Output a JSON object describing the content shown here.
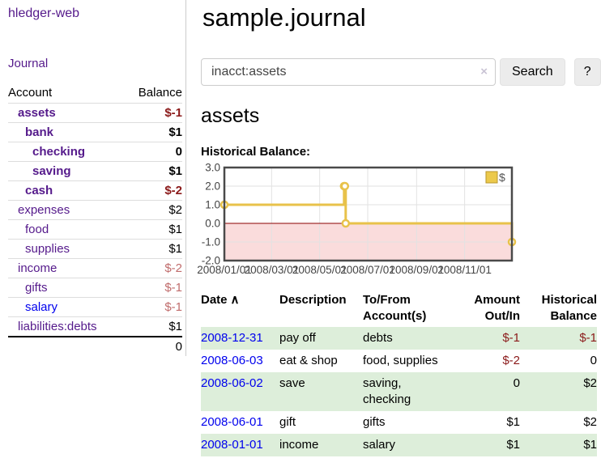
{
  "sidebar": {
    "app_title": "hledger-web",
    "nav": {
      "journal": "Journal"
    },
    "accounts_table": {
      "headers": {
        "account": "Account",
        "balance": "Balance"
      },
      "rows": [
        {
          "name": "assets",
          "balance": "$-1",
          "depth": 1,
          "in_account": true,
          "balance_tone": "neg-strong"
        },
        {
          "name": "bank",
          "balance": "$1",
          "depth": 2,
          "in_account": true,
          "balance_tone": ""
        },
        {
          "name": "checking",
          "balance": "0",
          "depth": 3,
          "in_account": true,
          "balance_tone": ""
        },
        {
          "name": "saving",
          "balance": "$1",
          "depth": 3,
          "in_account": true,
          "balance_tone": ""
        },
        {
          "name": "cash",
          "balance": "$-2",
          "depth": 2,
          "in_account": true,
          "balance_tone": "neg-strong"
        },
        {
          "name": "expenses",
          "balance": "$2",
          "depth": 1,
          "in_account": false,
          "balance_tone": ""
        },
        {
          "name": "food",
          "balance": "$1",
          "depth": 2,
          "in_account": false,
          "balance_tone": ""
        },
        {
          "name": "supplies",
          "balance": "$1",
          "depth": 2,
          "in_account": false,
          "balance_tone": ""
        },
        {
          "name": "income",
          "balance": "$-2",
          "depth": 1,
          "in_account": false,
          "balance_tone": "neg-soft"
        },
        {
          "name": "gifts",
          "balance": "$-1",
          "depth": 2,
          "in_account": false,
          "balance_tone": "neg-soft"
        },
        {
          "name": "salary",
          "balance": "$-1",
          "depth": 2,
          "in_account": false,
          "balance_tone": "neg-soft",
          "link_color": "blue"
        },
        {
          "name": "liabilities:debts",
          "balance": "$1",
          "depth": 1,
          "in_account": false,
          "balance_tone": ""
        }
      ],
      "total": "0"
    }
  },
  "main": {
    "page_title": "sample.journal",
    "search": {
      "value": "inacct:assets",
      "clear_icon": "×",
      "search_button": "Search",
      "help_button": "?"
    },
    "account_heading": "assets",
    "chart_title": "Historical Balance:"
  },
  "chart_data": {
    "type": "line",
    "style": "step-after",
    "title": "Historical Balance",
    "series": [
      {
        "name": "$",
        "points": [
          [
            "2008-01-01",
            1
          ],
          [
            "2008-06-01",
            2
          ],
          [
            "2008-06-02",
            2
          ],
          [
            "2008-06-03",
            0
          ],
          [
            "2008-12-31",
            -1
          ]
        ]
      }
    ],
    "x_start": "2008-01-01",
    "x_span_days": 365,
    "x_ticks": [
      {
        "label": "2008/01/01",
        "day": 0
      },
      {
        "label": "2008/03/01",
        "day": 60
      },
      {
        "label": "2008/05/01",
        "day": 121
      },
      {
        "label": "2008/07/01",
        "day": 182
      },
      {
        "label": "2008/09/01",
        "day": 244
      },
      {
        "label": "2008/11/01",
        "day": 305
      }
    ],
    "y_ticks": [
      "3.0",
      "2.0",
      "1.0",
      "0.0",
      "-1.0",
      "-2.0"
    ],
    "ylim": [
      -2,
      3
    ],
    "grid": true,
    "legend": {
      "label": "$",
      "position": "top-right"
    },
    "colors": {
      "line": "#e8c24a",
      "marker_fill": "#ffffff",
      "negative_region": "#fadcdc",
      "zero_line": "#8b0000",
      "grid": "#e2e2e2",
      "border": "#4a4a4a",
      "tick_text": "#444444",
      "legend_swatch": "#ecc94b",
      "legend_swatch_border": "#b8962e"
    }
  },
  "register": {
    "sort_icon": "∧",
    "headers": [
      "Date",
      "Description",
      "To/From Account(s)",
      "Amount Out/In",
      "Historical Balance"
    ],
    "rows": [
      {
        "date": "2008-12-31",
        "description": "pay off",
        "accounts": "debts",
        "amount": "$-1",
        "balance": "$-1",
        "amount_neg": true,
        "balance_neg": true,
        "green": true
      },
      {
        "date": "2008-06-03",
        "description": "eat & shop",
        "accounts": "food, supplies",
        "amount": "$-2",
        "balance": "0",
        "amount_neg": true,
        "balance_neg": false,
        "green": false
      },
      {
        "date": "2008-06-02",
        "description": "save",
        "accounts": "saving, checking",
        "amount": "0",
        "balance": "$2",
        "amount_neg": false,
        "balance_neg": false,
        "green": true
      },
      {
        "date": "2008-06-01",
        "description": "gift",
        "accounts": "gifts",
        "amount": "$1",
        "balance": "$2",
        "amount_neg": false,
        "balance_neg": false,
        "green": false
      },
      {
        "date": "2008-01-01",
        "description": "income",
        "accounts": "salary",
        "amount": "$1",
        "balance": "$1",
        "amount_neg": false,
        "balance_neg": false,
        "green": true
      }
    ]
  }
}
